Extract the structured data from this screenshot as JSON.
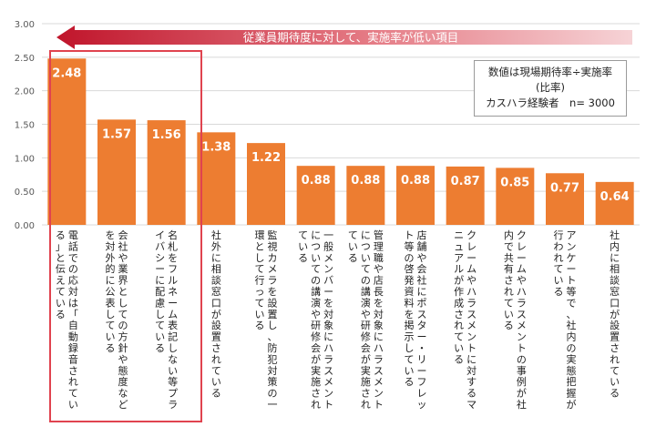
{
  "chart_data": {
    "type": "bar",
    "title": "",
    "xlabel": "",
    "ylabel": "",
    "ylim": [
      0,
      3
    ],
    "y_ticks": [
      "0.00",
      "0.50",
      "1.00",
      "1.50",
      "2.00",
      "2.50",
      "3.00"
    ],
    "grid": true,
    "categories": [
      "電話での応対は「自動録音されている」と伝えている",
      "会社や業界としての方針や態度などを対外的に公表している",
      "名札をフルネーム表記しない等プライバシーに配慮している",
      "社外に相談窓口が設置されている",
      "監視カメラを設置し、防犯対策の一環として行っている",
      "一般メンバーを対象にハラスメントについての講演や研修会が実施されている",
      "管理職や店長を対象にハラスメントについての講演や研修会が実施されている",
      "店舗や会社にポスター・リーフレット等の啓発資料を掲示している",
      "クレームやハラスメントに対するマニュアルが作成されている",
      "クレームやハラスメントの事例が社内で共有されている",
      "アンケート等で、社内の実態把握が行われている",
      "社内に相談窓口が設置されている"
    ],
    "values": [
      2.48,
      1.57,
      1.56,
      1.38,
      1.22,
      0.88,
      0.88,
      0.88,
      0.87,
      0.85,
      0.77,
      0.64
    ],
    "value_labels": [
      "2.48",
      "1.57",
      "1.56",
      "1.38",
      "1.22",
      "0.88",
      "0.88",
      "0.88",
      "0.87",
      "0.85",
      "0.77",
      "0.64"
    ],
    "highlighted_count": 3,
    "arrow_label": "従業員期待度に対して、実施率が低い項目",
    "legend_lines": [
      "数値は現場期待率÷実施率",
      "(比率)",
      "カスハラ経験者　n= 3000"
    ],
    "colors": {
      "bar": "#ED7D31",
      "highlight_border": "#E0434F",
      "arrow_dark": "#C0152B",
      "arrow_light": "#F6D3D6",
      "grid": "#D9D9D9"
    }
  }
}
